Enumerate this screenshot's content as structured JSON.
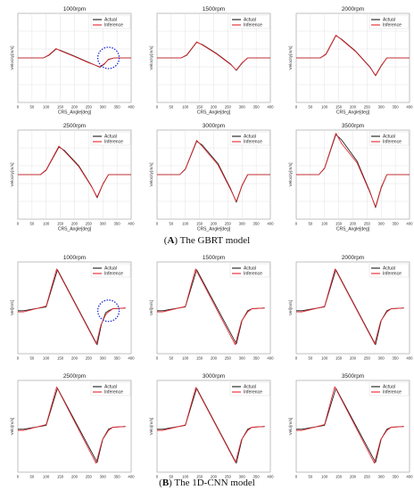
{
  "sections": [
    {
      "letter": "A",
      "caption": "The GBRT model"
    },
    {
      "letter": "B",
      "caption": "The 1D-CNN model"
    }
  ],
  "colors": {
    "actual": "#1a1a1a",
    "inference": "#e8242b",
    "annotation": "#1e2fd6",
    "grid": "#dcdcdc"
  },
  "chart_data": [
    {
      "type": "line",
      "section": "A",
      "title": "1000rpm",
      "xlabel": "CRS_Angle[deg]",
      "ylabel": "Velocity[m/s]",
      "xlim": [
        0,
        400
      ],
      "xticks": [
        0,
        50,
        100,
        150,
        200,
        250,
        300,
        350,
        400
      ],
      "x_tick_labels": [
        "0",
        "50",
        "100",
        "150",
        "200",
        "250",
        "300",
        "350",
        "400"
      ],
      "grid": true,
      "legend": "top-right",
      "annotation": "dashed-circle",
      "series": [
        {
          "name": "Actual",
          "x": [
            0,
            90,
            110,
            135,
            150,
            200,
            250,
            290,
            305,
            320,
            340,
            400
          ],
          "y": [
            0,
            0,
            0.06,
            0.2,
            0.17,
            0.04,
            -0.1,
            -0.21,
            -0.14,
            -0.03,
            0,
            0
          ]
        },
        {
          "name": "Inference",
          "x": [
            0,
            90,
            110,
            135,
            150,
            200,
            250,
            290,
            305,
            320,
            340,
            400
          ],
          "y": [
            0,
            0,
            0.07,
            0.21,
            0.16,
            0.03,
            -0.11,
            -0.2,
            -0.13,
            -0.04,
            0,
            0
          ]
        }
      ]
    },
    {
      "type": "line",
      "section": "A",
      "title": "1500rpm",
      "xlabel": "CRS_Angle[deg]",
      "ylabel": "Velocity[m/s]",
      "xlim": [
        0,
        400
      ],
      "xticks": [
        0,
        50,
        100,
        150,
        200,
        250,
        300,
        350,
        400
      ],
      "x_tick_labels": [
        "0",
        "50",
        "100",
        "150",
        "200",
        "250",
        "300",
        "350",
        "400"
      ],
      "grid": true,
      "legend": "top-right",
      "series": [
        {
          "name": "Actual",
          "x": [
            0,
            85,
            105,
            140,
            160,
            210,
            260,
            280,
            300,
            320,
            400
          ],
          "y": [
            0,
            0,
            0.06,
            0.35,
            0.3,
            0.1,
            -0.14,
            -0.28,
            -0.12,
            0,
            0
          ]
        },
        {
          "name": "Inference",
          "x": [
            0,
            85,
            105,
            140,
            160,
            210,
            260,
            280,
            300,
            320,
            400
          ],
          "y": [
            0,
            0,
            0.07,
            0.36,
            0.29,
            0.09,
            -0.15,
            -0.27,
            -0.11,
            0,
            0
          ]
        }
      ]
    },
    {
      "type": "line",
      "section": "A",
      "title": "2000rpm",
      "xlabel": "CRS_Angle[deg]",
      "ylabel": "Velocity[m/s]",
      "xlim": [
        0,
        400
      ],
      "xticks": [
        0,
        50,
        100,
        150,
        200,
        250,
        300,
        350,
        400
      ],
      "x_tick_labels": [
        "0",
        "50",
        "100",
        "150",
        "200",
        "250",
        "300",
        "350",
        "400"
      ],
      "grid": true,
      "legend": "top-right",
      "series": [
        {
          "name": "Actual",
          "x": [
            0,
            85,
            105,
            140,
            160,
            210,
            260,
            280,
            300,
            320,
            400
          ],
          "y": [
            0,
            0,
            0.08,
            0.5,
            0.42,
            0.15,
            -0.2,
            -0.4,
            -0.18,
            0,
            0
          ]
        },
        {
          "name": "Inference",
          "x": [
            0,
            85,
            105,
            140,
            160,
            210,
            260,
            280,
            300,
            320,
            400
          ],
          "y": [
            0,
            0,
            0.09,
            0.51,
            0.41,
            0.14,
            -0.21,
            -0.39,
            -0.17,
            0,
            0
          ]
        }
      ]
    },
    {
      "type": "line",
      "section": "A",
      "title": "2500rpm",
      "xlabel": "CRS_Angle[deg]",
      "ylabel": "Velocity[m/s]",
      "xlim": [
        0,
        400
      ],
      "xticks": [
        0,
        50,
        100,
        150,
        200,
        250,
        300,
        350,
        400
      ],
      "x_tick_labels": [
        "0",
        "50",
        "100",
        "150",
        "200",
        "250",
        "300",
        "350",
        "400"
      ],
      "grid": true,
      "legend": "top-right",
      "series": [
        {
          "name": "Actual",
          "x": [
            0,
            80,
            100,
            145,
            165,
            215,
            260,
            280,
            300,
            320,
            400
          ],
          "y": [
            0,
            0,
            0.1,
            0.62,
            0.54,
            0.2,
            -0.26,
            -0.52,
            -0.22,
            0,
            0
          ]
        },
        {
          "name": "Inference",
          "x": [
            0,
            80,
            100,
            145,
            165,
            215,
            260,
            280,
            300,
            320,
            400
          ],
          "y": [
            0,
            0,
            0.11,
            0.64,
            0.52,
            0.18,
            -0.27,
            -0.5,
            -0.21,
            0,
            0
          ]
        }
      ]
    },
    {
      "type": "line",
      "section": "A",
      "title": "3000rpm",
      "xlabel": "CRS_Angle[deg]",
      "ylabel": "Velocity[m/s]",
      "xlim": [
        0,
        400
      ],
      "xticks": [
        0,
        50,
        100,
        150,
        200,
        250,
        300,
        350,
        400
      ],
      "x_tick_labels": [
        "0",
        "50",
        "100",
        "150",
        "200",
        "250",
        "300",
        "350",
        "400"
      ],
      "grid": true,
      "legend": "top-right",
      "series": [
        {
          "name": "Actual",
          "x": [
            0,
            80,
            100,
            140,
            160,
            215,
            260,
            280,
            300,
            320,
            400
          ],
          "y": [
            0,
            0,
            0.12,
            0.75,
            0.66,
            0.25,
            -0.32,
            -0.62,
            -0.25,
            0,
            0
          ]
        },
        {
          "name": "Inference",
          "x": [
            0,
            80,
            100,
            140,
            160,
            215,
            260,
            280,
            300,
            320,
            400
          ],
          "y": [
            0,
            0,
            0.13,
            0.77,
            0.63,
            0.22,
            -0.34,
            -0.6,
            -0.24,
            0,
            0
          ]
        }
      ]
    },
    {
      "type": "line",
      "section": "A",
      "title": "3500rpm",
      "xlabel": "CRS_Angle[deg]",
      "ylabel": "Velocity[m/s]",
      "xlim": [
        0,
        400
      ],
      "xticks": [
        0,
        50,
        100,
        150,
        200,
        250,
        300,
        350,
        400
      ],
      "x_tick_labels": [
        "0",
        "50",
        "100",
        "150",
        "200",
        "250",
        "300",
        "350",
        "400"
      ],
      "grid": true,
      "legend": "top-right",
      "series": [
        {
          "name": "Actual",
          "x": [
            0,
            80,
            100,
            140,
            160,
            215,
            260,
            280,
            300,
            320,
            400
          ],
          "y": [
            0,
            0,
            0.14,
            0.9,
            0.78,
            0.3,
            -0.38,
            -0.74,
            -0.3,
            0,
            0
          ]
        },
        {
          "name": "Inference",
          "x": [
            0,
            80,
            100,
            140,
            160,
            215,
            260,
            280,
            300,
            320,
            400
          ],
          "y": [
            0,
            0,
            0.15,
            0.93,
            0.7,
            0.26,
            -0.4,
            -0.72,
            -0.28,
            0,
            0
          ]
        }
      ]
    },
    {
      "type": "line",
      "section": "B",
      "title": "1000rpm",
      "xlabel": "",
      "ylabel": "Vel[m/s]",
      "xlim": [
        0,
        400
      ],
      "xticks": [
        0,
        50,
        100,
        150,
        200,
        250,
        300,
        350,
        400
      ],
      "x_tick_labels": [
        "0",
        "50",
        "100",
        "150",
        "200",
        "250",
        "300",
        "350",
        "400"
      ],
      "grid": false,
      "legend": "top-right",
      "annotation": "dashed-circle",
      "series": [
        {
          "name": "Actual",
          "x": [
            0,
            20,
            100,
            140,
            280,
            295,
            310,
            320,
            335,
            380
          ],
          "y": [
            -0.05,
            -0.05,
            0.05,
            1.0,
            -0.92,
            -0.4,
            -0.1,
            -0.05,
            0.0,
            0.02
          ]
        },
        {
          "name": "Inference",
          "x": [
            0,
            20,
            100,
            137,
            277,
            293,
            310,
            320,
            335,
            380
          ],
          "y": [
            -0.08,
            -0.08,
            0.07,
            1.02,
            -0.9,
            -0.42,
            -0.15,
            -0.08,
            0.0,
            0.02
          ]
        }
      ]
    },
    {
      "type": "line",
      "section": "B",
      "title": "1500rpm",
      "xlabel": "",
      "ylabel": "Vel[m/s]",
      "xlim": [
        0,
        400
      ],
      "xticks": [
        0,
        50,
        100,
        150,
        200,
        250,
        300,
        350,
        400
      ],
      "x_tick_labels": [
        "0",
        "50",
        "100",
        "150",
        "200",
        "250",
        "300",
        "350",
        "400"
      ],
      "grid": false,
      "legend": "top-right",
      "series": [
        {
          "name": "Actual",
          "x": [
            0,
            20,
            100,
            140,
            280,
            300,
            320,
            335,
            380
          ],
          "y": [
            -0.05,
            -0.05,
            0.05,
            1.0,
            -0.9,
            -0.3,
            -0.05,
            0.0,
            0.02
          ]
        },
        {
          "name": "Inference",
          "x": [
            0,
            20,
            100,
            136,
            276,
            298,
            320,
            335,
            380
          ],
          "y": [
            -0.08,
            -0.08,
            0.06,
            1.02,
            -0.92,
            -0.32,
            -0.08,
            0.0,
            0.02
          ]
        }
      ]
    },
    {
      "type": "line",
      "section": "B",
      "title": "2000rpm",
      "xlabel": "",
      "ylabel": "Vel[m/s]",
      "xlim": [
        0,
        400
      ],
      "xticks": [
        0,
        50,
        100,
        150,
        200,
        250,
        300,
        350,
        400
      ],
      "x_tick_labels": [
        "0",
        "50",
        "100",
        "150",
        "200",
        "250",
        "300",
        "350",
        "400"
      ],
      "grid": false,
      "legend": "top-right",
      "series": [
        {
          "name": "Actual",
          "x": [
            0,
            20,
            100,
            140,
            280,
            300,
            320,
            335,
            380
          ],
          "y": [
            -0.05,
            -0.05,
            0.05,
            1.0,
            -0.92,
            -0.3,
            -0.05,
            0.0,
            0.02
          ]
        },
        {
          "name": "Inference",
          "x": [
            0,
            20,
            100,
            137,
            277,
            298,
            320,
            335,
            380
          ],
          "y": [
            -0.08,
            -0.08,
            0.06,
            1.02,
            -0.9,
            -0.32,
            -0.08,
            0.0,
            0.02
          ]
        }
      ]
    },
    {
      "type": "line",
      "section": "B",
      "title": "2500rpm",
      "xlabel": "",
      "ylabel": "Velo[m/s]",
      "xlim": [
        0,
        400
      ],
      "xticks": [
        0,
        50,
        100,
        150,
        200,
        250,
        300,
        350,
        400
      ],
      "x_tick_labels": [
        "0",
        "50",
        "100",
        "150",
        "200",
        "250",
        "300",
        "350",
        "400"
      ],
      "grid": false,
      "legend": "top-right",
      "series": [
        {
          "name": "Actual",
          "x": [
            0,
            20,
            100,
            140,
            280,
            300,
            320,
            335,
            380
          ],
          "y": [
            -0.05,
            -0.05,
            0.05,
            1.0,
            -0.9,
            -0.3,
            -0.05,
            0.0,
            0.02
          ]
        },
        {
          "name": "Inference",
          "x": [
            0,
            20,
            100,
            137,
            276,
            298,
            320,
            335,
            380
          ],
          "y": [
            -0.08,
            -0.08,
            0.07,
            1.03,
            -0.92,
            -0.33,
            -0.08,
            0.0,
            0.02
          ]
        }
      ]
    },
    {
      "type": "line",
      "section": "B",
      "title": "3000rpm",
      "xlabel": "",
      "ylabel": "Velo[m/s]",
      "xlim": [
        0,
        400
      ],
      "xticks": [
        0,
        50,
        100,
        150,
        200,
        250,
        300,
        350,
        400
      ],
      "x_tick_labels": [
        "0",
        "50",
        "100",
        "150",
        "200",
        "250",
        "300",
        "350",
        "400"
      ],
      "grid": false,
      "legend": "top-right",
      "series": [
        {
          "name": "Actual",
          "x": [
            0,
            20,
            100,
            140,
            280,
            300,
            320,
            335,
            380
          ],
          "y": [
            -0.05,
            -0.05,
            0.05,
            1.0,
            -0.92,
            -0.3,
            -0.05,
            0.0,
            0.02
          ]
        },
        {
          "name": "Inference",
          "x": [
            0,
            20,
            100,
            137,
            277,
            298,
            320,
            335,
            380
          ],
          "y": [
            -0.08,
            -0.08,
            0.06,
            1.02,
            -0.9,
            -0.32,
            -0.08,
            0.0,
            0.02
          ]
        }
      ]
    },
    {
      "type": "line",
      "section": "B",
      "title": "3500rpm",
      "xlabel": "",
      "ylabel": "Velo[m/s]",
      "xlim": [
        0,
        400
      ],
      "xticks": [
        0,
        50,
        100,
        150,
        200,
        250,
        300,
        350,
        400
      ],
      "x_tick_labels": [
        "0",
        "50",
        "100",
        "150",
        "200",
        "250",
        "300",
        "350",
        "400"
      ],
      "grid": false,
      "legend": "top-right",
      "series": [
        {
          "name": "Actual",
          "x": [
            0,
            20,
            100,
            140,
            280,
            300,
            320,
            335,
            380
          ],
          "y": [
            -0.05,
            -0.05,
            0.05,
            1.0,
            -0.9,
            -0.3,
            -0.05,
            0.0,
            0.02
          ]
        },
        {
          "name": "Inference",
          "x": [
            0,
            20,
            100,
            136,
            276,
            298,
            320,
            335,
            380
          ],
          "y": [
            -0.08,
            -0.08,
            0.07,
            1.04,
            -0.92,
            -0.32,
            -0.08,
            0.0,
            0.02
          ]
        }
      ]
    }
  ]
}
